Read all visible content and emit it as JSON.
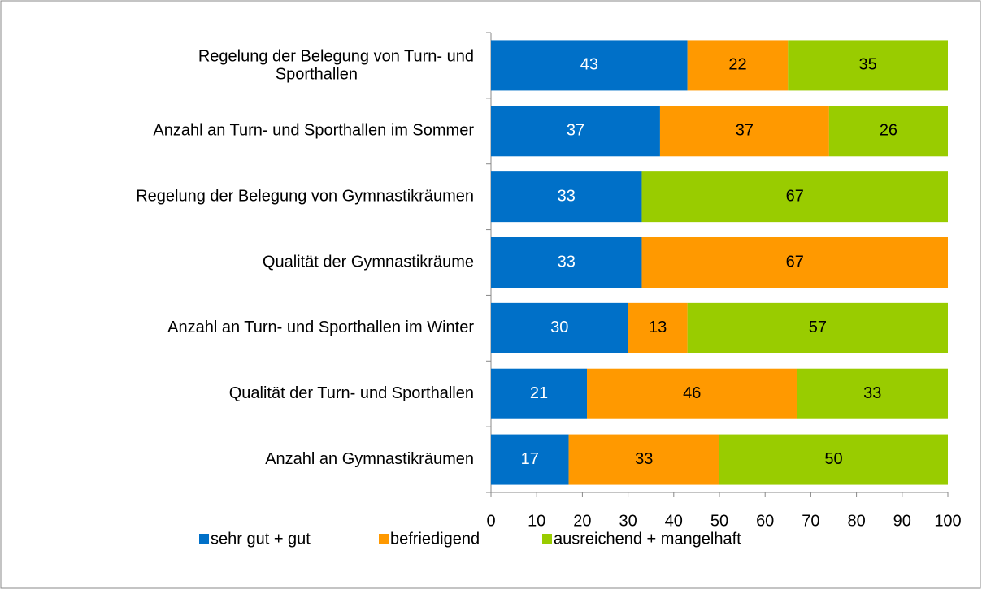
{
  "chart_data": {
    "type": "stacked_bar_horizontal",
    "categories": [
      "Regelung der Belegung von Turn- und Sporthallen",
      "Anzahl an Turn- und Sporthallen im Sommer",
      "Regelung der Belegung von Gymnastikräumen",
      "Qualität der Gymnastikräume",
      "Anzahl an Turn- und Sporthallen im Winter",
      "Qualität der Turn- und Sporthallen",
      "Anzahl an Gymnastikräumen"
    ],
    "series": [
      {
        "name": "sehr gut + gut",
        "color": "#0070c8",
        "values": [
          43,
          37,
          33,
          33,
          30,
          21,
          17
        ]
      },
      {
        "name": "befriedigend",
        "color": "#ff9900",
        "values": [
          22,
          37,
          0,
          67,
          13,
          46,
          33
        ]
      },
      {
        "name": "ausreichend + mangelhaft",
        "color": "#99cc00",
        "values": [
          35,
          26,
          67,
          0,
          57,
          33,
          50
        ]
      }
    ],
    "xlim": [
      0,
      100
    ],
    "xticks": [
      0,
      10,
      20,
      30,
      40,
      50,
      60,
      70,
      80,
      90,
      100
    ],
    "legend": "bottom"
  }
}
